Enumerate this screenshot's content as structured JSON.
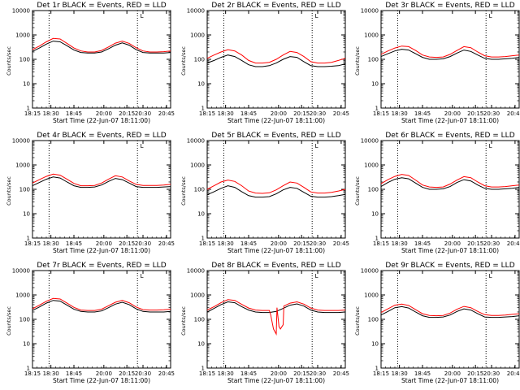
{
  "colors": {
    "events": "#000000",
    "lld": "#ff0000",
    "background": "#ffffff"
  },
  "shared": {
    "xlabel": "Start Time (22-Jun-07 18:11:00)",
    "ylabel": "Counts/sec",
    "x_tick_labels": [
      "18:15",
      "18:30",
      "18:45",
      "20:00",
      "20:15",
      "20:30",
      "20:45"
    ],
    "y_tick_labels": [
      "1",
      "10",
      "100",
      "1000",
      "10000"
    ],
    "marker_label": "L"
  },
  "chart_data": [
    {
      "type": "line",
      "title": "Det 1r BLACK = Events, RED = LLD",
      "y_scale": "log",
      "ylim": [
        1,
        10000
      ],
      "series": [
        {
          "name": "Events",
          "color": "#000000",
          "x": [
            0,
            0.05,
            0.1,
            0.15,
            0.2,
            0.25,
            0.3,
            0.35,
            0.4,
            0.45,
            0.5,
            0.55,
            0.6,
            0.65,
            0.7,
            0.75,
            0.8,
            0.85,
            0.9,
            0.95,
            1.0
          ],
          "values": [
            210,
            290,
            420,
            560,
            520,
            360,
            240,
            190,
            180,
            180,
            200,
            270,
            380,
            470,
            380,
            250,
            190,
            180,
            180,
            180,
            190
          ]
        },
        {
          "name": "LLD",
          "color": "#ff0000",
          "x": [
            0,
            0.05,
            0.1,
            0.15,
            0.2,
            0.25,
            0.3,
            0.35,
            0.4,
            0.45,
            0.5,
            0.55,
            0.6,
            0.65,
            0.7,
            0.75,
            0.8,
            0.85,
            0.9,
            0.95,
            1.0
          ],
          "values": [
            250,
            350,
            520,
            720,
            680,
            450,
            290,
            220,
            200,
            200,
            230,
            320,
            460,
            560,
            450,
            300,
            220,
            200,
            200,
            205,
            220
          ]
        }
      ]
    },
    {
      "type": "line",
      "title": "Det 2r BLACK = Events, RED = LLD",
      "y_scale": "log",
      "ylim": [
        1,
        10000
      ],
      "series": [
        {
          "name": "Events",
          "color": "#000000",
          "x": [
            0,
            0.05,
            0.1,
            0.15,
            0.2,
            0.25,
            0.3,
            0.35,
            0.4,
            0.45,
            0.5,
            0.55,
            0.6,
            0.65,
            0.7,
            0.75,
            0.8,
            0.85,
            0.9,
            0.95,
            1.0
          ],
          "values": [
            70,
            90,
            120,
            150,
            130,
            90,
            60,
            50,
            50,
            55,
            70,
            100,
            130,
            120,
            80,
            55,
            50,
            50,
            52,
            55,
            65
          ]
        },
        {
          "name": "LLD",
          "color": "#ff0000",
          "x": [
            0,
            0.05,
            0.1,
            0.15,
            0.2,
            0.25,
            0.3,
            0.35,
            0.4,
            0.45,
            0.5,
            0.55,
            0.6,
            0.65,
            0.7,
            0.75,
            0.8,
            0.85,
            0.9,
            0.95,
            1.0
          ],
          "values": [
            110,
            150,
            200,
            250,
            220,
            150,
            90,
            70,
            70,
            75,
            100,
            150,
            210,
            190,
            130,
            80,
            70,
            70,
            75,
            90,
            110
          ]
        }
      ]
    },
    {
      "type": "line",
      "title": "Det 3r BLACK = Events, RED = LLD",
      "y_scale": "log",
      "ylim": [
        1,
        10000
      ],
      "series": [
        {
          "name": "Events",
          "color": "#000000",
          "x": [
            0,
            0.05,
            0.1,
            0.15,
            0.2,
            0.25,
            0.3,
            0.35,
            0.4,
            0.45,
            0.5,
            0.55,
            0.6,
            0.65,
            0.7,
            0.75,
            0.8,
            0.85,
            0.9,
            0.95,
            1.0
          ],
          "values": [
            130,
            170,
            220,
            260,
            240,
            170,
            120,
            100,
            100,
            105,
            130,
            180,
            240,
            210,
            150,
            110,
            100,
            100,
            105,
            110,
            120
          ]
        },
        {
          "name": "LLD",
          "color": "#ff0000",
          "x": [
            0,
            0.05,
            0.1,
            0.15,
            0.2,
            0.25,
            0.3,
            0.35,
            0.4,
            0.45,
            0.5,
            0.55,
            0.6,
            0.65,
            0.7,
            0.75,
            0.8,
            0.85,
            0.9,
            0.95,
            1.0
          ],
          "values": [
            160,
            220,
            290,
            350,
            330,
            230,
            150,
            125,
            120,
            125,
            160,
            230,
            330,
            300,
            200,
            140,
            125,
            125,
            130,
            140,
            150
          ]
        }
      ]
    },
    {
      "type": "line",
      "title": "Det 4r BLACK = Events, RED = LLD",
      "y_scale": "log",
      "ylim": [
        1,
        10000
      ],
      "series": [
        {
          "name": "Events",
          "color": "#000000",
          "x": [
            0,
            0.05,
            0.1,
            0.15,
            0.2,
            0.25,
            0.3,
            0.35,
            0.4,
            0.45,
            0.5,
            0.55,
            0.6,
            0.65,
            0.7,
            0.75,
            0.8,
            0.85,
            0.9,
            0.95,
            1.0
          ],
          "values": [
            140,
            190,
            260,
            320,
            290,
            200,
            140,
            120,
            120,
            125,
            150,
            210,
            280,
            250,
            180,
            130,
            120,
            120,
            120,
            125,
            130
          ]
        },
        {
          "name": "LLD",
          "color": "#ff0000",
          "x": [
            0,
            0.05,
            0.1,
            0.15,
            0.2,
            0.25,
            0.3,
            0.35,
            0.4,
            0.45,
            0.5,
            0.55,
            0.6,
            0.65,
            0.7,
            0.75,
            0.8,
            0.85,
            0.9,
            0.95,
            1.0
          ],
          "values": [
            180,
            250,
            340,
            420,
            380,
            260,
            175,
            140,
            140,
            145,
            180,
            260,
            360,
            320,
            220,
            160,
            145,
            145,
            145,
            150,
            160
          ]
        }
      ]
    },
    {
      "type": "line",
      "title": "Det 5r BLACK = Events, RED = LLD",
      "y_scale": "log",
      "ylim": [
        1,
        10000
      ],
      "series": [
        {
          "name": "Events",
          "color": "#000000",
          "x": [
            0,
            0.05,
            0.1,
            0.15,
            0.2,
            0.25,
            0.3,
            0.35,
            0.4,
            0.45,
            0.5,
            0.55,
            0.6,
            0.65,
            0.7,
            0.75,
            0.8,
            0.85,
            0.9,
            0.95,
            1.0
          ],
          "values": [
            60,
            80,
            110,
            140,
            120,
            80,
            55,
            48,
            48,
            50,
            65,
            95,
            120,
            110,
            75,
            52,
            48,
            48,
            50,
            55,
            62
          ]
        },
        {
          "name": "LLD",
          "color": "#ff0000",
          "x": [
            0,
            0.05,
            0.1,
            0.15,
            0.2,
            0.25,
            0.3,
            0.35,
            0.4,
            0.45,
            0.5,
            0.55,
            0.6,
            0.65,
            0.7,
            0.75,
            0.8,
            0.85,
            0.9,
            0.95,
            1.0
          ],
          "values": [
            100,
            140,
            200,
            240,
            210,
            140,
            85,
            70,
            68,
            72,
            95,
            140,
            200,
            180,
            120,
            78,
            70,
            70,
            75,
            85,
            100
          ]
        }
      ]
    },
    {
      "type": "line",
      "title": "Det 6r BLACK = Events, RED = LLD",
      "y_scale": "log",
      "ylim": [
        1,
        10000
      ],
      "series": [
        {
          "name": "Events",
          "color": "#000000",
          "x": [
            0,
            0.05,
            0.1,
            0.15,
            0.2,
            0.25,
            0.3,
            0.35,
            0.4,
            0.45,
            0.5,
            0.55,
            0.6,
            0.65,
            0.7,
            0.75,
            0.8,
            0.85,
            0.9,
            0.95,
            1.0
          ],
          "values": [
            130,
            190,
            260,
            300,
            270,
            180,
            120,
            100,
            100,
            105,
            130,
            190,
            250,
            220,
            150,
            110,
            100,
            100,
            105,
            110,
            120
          ]
        },
        {
          "name": "LLD",
          "color": "#ff0000",
          "x": [
            0,
            0.05,
            0.1,
            0.15,
            0.2,
            0.25,
            0.3,
            0.35,
            0.4,
            0.45,
            0.5,
            0.55,
            0.6,
            0.65,
            0.7,
            0.75,
            0.8,
            0.85,
            0.9,
            0.95,
            1.0
          ],
          "values": [
            170,
            250,
            340,
            410,
            370,
            240,
            150,
            125,
            120,
            125,
            165,
            240,
            330,
            300,
            200,
            140,
            125,
            125,
            130,
            140,
            150
          ]
        }
      ]
    },
    {
      "type": "line",
      "title": "Det 7r BLACK = Events, RED = LLD",
      "y_scale": "log",
      "ylim": [
        1,
        10000
      ],
      "series": [
        {
          "name": "Events",
          "color": "#000000",
          "x": [
            0,
            0.05,
            0.1,
            0.15,
            0.2,
            0.25,
            0.3,
            0.35,
            0.4,
            0.45,
            0.5,
            0.55,
            0.6,
            0.65,
            0.7,
            0.75,
            0.8,
            0.85,
            0.9,
            0.95,
            1.0
          ],
          "values": [
            230,
            320,
            460,
            600,
            560,
            380,
            260,
            210,
            200,
            200,
            220,
            300,
            420,
            500,
            400,
            270,
            210,
            200,
            200,
            200,
            210
          ]
        },
        {
          "name": "LLD",
          "color": "#ff0000",
          "x": [
            0,
            0.05,
            0.1,
            0.15,
            0.2,
            0.25,
            0.3,
            0.35,
            0.4,
            0.45,
            0.5,
            0.55,
            0.6,
            0.65,
            0.7,
            0.75,
            0.8,
            0.85,
            0.9,
            0.95,
            1.0
          ],
          "values": [
            270,
            380,
            550,
            720,
            680,
            460,
            310,
            240,
            230,
            230,
            260,
            360,
            500,
            600,
            480,
            320,
            250,
            240,
            240,
            245,
            260
          ]
        }
      ]
    },
    {
      "type": "line",
      "title": "Det 8r BLACK = Events, RED = LLD",
      "y_scale": "log",
      "ylim": [
        1,
        10000
      ],
      "series": [
        {
          "name": "Events",
          "color": "#000000",
          "x": [
            0,
            0.05,
            0.1,
            0.15,
            0.2,
            0.25,
            0.3,
            0.35,
            0.4,
            0.45,
            0.5,
            0.55,
            0.6,
            0.65,
            0.7,
            0.75,
            0.8,
            0.85,
            0.9,
            0.95,
            1.0
          ],
          "values": [
            200,
            280,
            400,
            520,
            480,
            330,
            240,
            200,
            190,
            190,
            210,
            280,
            380,
            430,
            350,
            240,
            200,
            190,
            190,
            190,
            200
          ]
        },
        {
          "name": "LLD",
          "color": "#ff0000",
          "x": [
            0,
            0.05,
            0.1,
            0.15,
            0.2,
            0.25,
            0.3,
            0.35,
            0.4,
            0.45,
            0.46,
            0.48,
            0.5,
            0.505,
            0.52,
            0.53,
            0.55,
            0.555,
            0.6,
            0.65,
            0.7,
            0.75,
            0.8,
            0.85,
            0.9,
            0.95,
            1.0
          ],
          "values": [
            240,
            330,
            480,
            640,
            600,
            410,
            290,
            240,
            230,
            230,
            150,
            40,
            25,
            300,
            50,
            40,
            60,
            350,
            460,
            520,
            420,
            290,
            240,
            230,
            230,
            230,
            240
          ]
        }
      ]
    },
    {
      "type": "line",
      "title": "Det 9r BLACK = Events, RED = LLD",
      "y_scale": "log",
      "ylim": [
        1,
        10000
      ],
      "series": [
        {
          "name": "Events",
          "color": "#000000",
          "x": [
            0,
            0.05,
            0.1,
            0.15,
            0.2,
            0.25,
            0.3,
            0.35,
            0.4,
            0.45,
            0.5,
            0.55,
            0.6,
            0.65,
            0.7,
            0.75,
            0.8,
            0.85,
            0.9,
            0.95,
            1.0
          ],
          "values": [
            150,
            210,
            300,
            330,
            290,
            200,
            140,
            120,
            120,
            125,
            150,
            210,
            270,
            240,
            170,
            125,
            120,
            120,
            125,
            130,
            140
          ]
        },
        {
          "name": "LLD",
          "color": "#ff0000",
          "x": [
            0,
            0.05,
            0.1,
            0.15,
            0.2,
            0.25,
            0.3,
            0.35,
            0.4,
            0.45,
            0.5,
            0.55,
            0.6,
            0.65,
            0.7,
            0.75,
            0.8,
            0.85,
            0.9,
            0.95,
            1.0
          ],
          "values": [
            190,
            270,
            380,
            420,
            370,
            250,
            170,
            145,
            140,
            145,
            180,
            260,
            340,
            300,
            210,
            155,
            145,
            145,
            150,
            160,
            170
          ]
        }
      ]
    }
  ]
}
